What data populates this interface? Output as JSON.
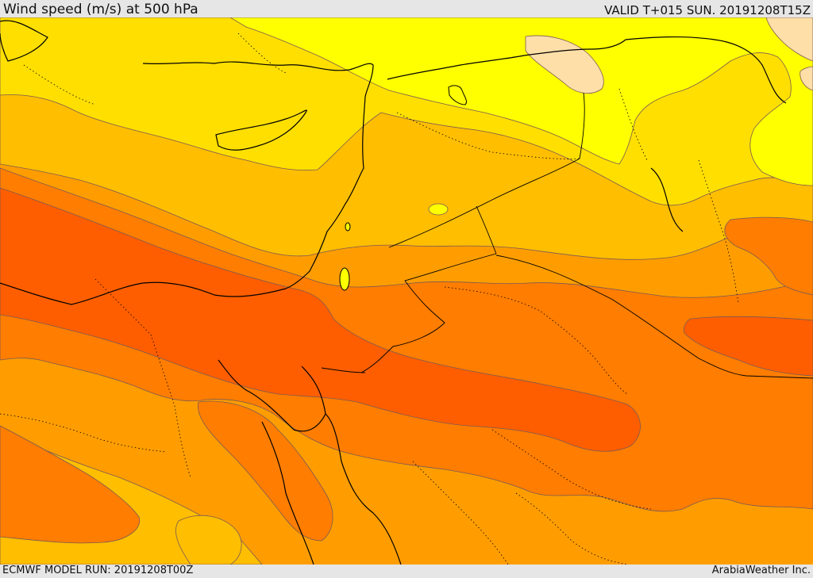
{
  "header": {
    "title": "Wind speed (m/s) at 500 hPa",
    "valid": "VALID T+015 SUN. 20191208T15Z"
  },
  "footer": {
    "model_run": "ECMWF MODEL RUN: 20191208T00Z",
    "credit": "ArabiaWeather Inc."
  },
  "palette": {
    "band_lt15": "#ffff00",
    "band_15_20": "#ffdf00",
    "band_20_25": "#ffbe00",
    "band_25_30": "#ff9d00",
    "band_30_35": "#ff7d00",
    "band_35_40": "#ff5e00",
    "calm_pocket": "#ffdfa8"
  }
}
